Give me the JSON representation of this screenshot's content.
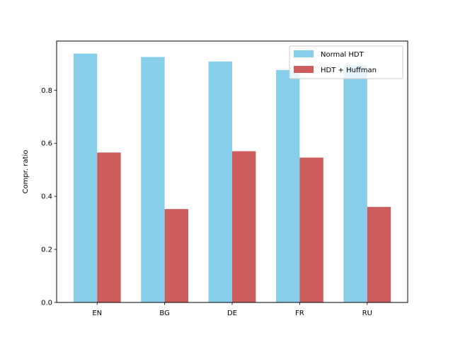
{
  "chart_data": {
    "type": "bar",
    "categories": [
      "EN",
      "BG",
      "DE",
      "FR",
      "RU"
    ],
    "series": [
      {
        "name": "Normal HDT",
        "values": [
          0.938,
          0.925,
          0.908,
          0.876,
          0.895
        ],
        "color": "#87CEEB"
      },
      {
        "name": "HDT + Huffman",
        "values": [
          0.565,
          0.352,
          0.57,
          0.546,
          0.36
        ],
        "color": "#CD5C5C"
      }
    ],
    "title": "",
    "xlabel": "",
    "ylabel": "Compr. ratio",
    "ylim": [
      0,
      0.985
    ],
    "yticks": [
      0.0,
      0.2,
      0.4,
      0.6,
      0.8
    ],
    "ytick_labels": [
      "0.0",
      "0.2",
      "0.4",
      "0.6",
      "0.8"
    ],
    "legend_position": "top-right",
    "grid": false
  }
}
